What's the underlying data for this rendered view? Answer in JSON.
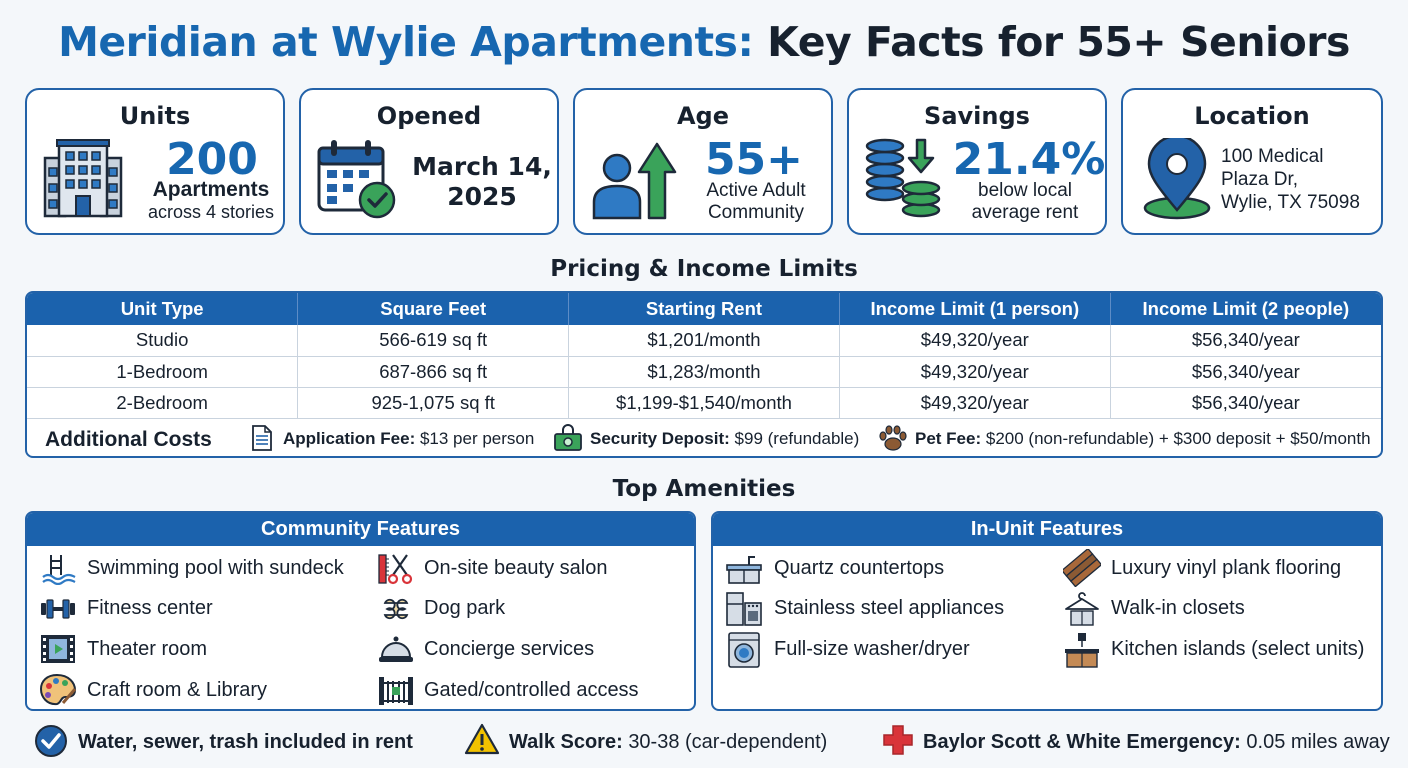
{
  "title": {
    "part1": "Meridian at Wylie Apartments:",
    "part2": "Key Facts for 55+ Seniors"
  },
  "cards": {
    "units": {
      "title": "Units",
      "value": "200",
      "line1": "Apartments",
      "line2": "across 4 stories",
      "icon": "apartment-building-icon"
    },
    "opened": {
      "title": "Opened",
      "line1": "March 14,",
      "line2": "2025",
      "icon": "calendar-check-icon"
    },
    "age": {
      "title": "Age",
      "value": "55+",
      "line1": "Active Adult",
      "line2": "Community",
      "icon": "person-growth-arrow-icon"
    },
    "savings": {
      "title": "Savings",
      "value": "21.4%",
      "line1": "below local",
      "line2": "average rent",
      "icon": "coin-stacks-icon"
    },
    "location": {
      "title": "Location",
      "line1": "100 Medical",
      "line2": "Plaza Dr,",
      "line3": "Wylie, TX 75098",
      "icon": "map-pin-icon"
    }
  },
  "pricing": {
    "title": "Pricing & Income Limits",
    "columns": [
      "Unit Type",
      "Square Feet",
      "Starting Rent",
      "Income Limit (1 person)",
      "Income Limit (2 people)"
    ],
    "rows": [
      [
        "Studio",
        "566-619 sq ft",
        "$1,201/month",
        "$49,320/year",
        "$56,340/year"
      ],
      [
        "1-Bedroom",
        "687-866 sq ft",
        "$1,283/month",
        "$49,320/year",
        "$56,340/year"
      ],
      [
        "2-Bedroom",
        "925-1,075 sq ft",
        "$1,199-$1,540/month",
        "$49,320/year",
        "$56,340/year"
      ]
    ],
    "additional": {
      "label": "Additional Costs",
      "application_label": "Application Fee:",
      "application_value": "$13 per person",
      "deposit_label": "Security Deposit:",
      "deposit_value": "$99 (refundable)",
      "pet_label": "Pet Fee:",
      "pet_value": "$200 (non-refundable) + $300 deposit + $50/month"
    }
  },
  "amenities": {
    "title": "Top Amenities",
    "community": {
      "header": "Community Features",
      "items": [
        "Swimming pool with sundeck",
        "Fitness center",
        "Theater room",
        "Craft room & Library",
        "On-site beauty salon",
        "Dog park",
        "Concierge services",
        "Gated/controlled access"
      ]
    },
    "inunit": {
      "header": "In-Unit Features",
      "items": [
        "Quartz countertops",
        "Stainless steel appliances",
        "Full-size washer/dryer",
        "Luxury vinyl plank flooring",
        "Walk-in closets",
        "Kitchen islands (select units)"
      ]
    }
  },
  "footer": {
    "utilities": "Water, sewer, trash included in rent",
    "walk_label": "Walk Score:",
    "walk_value": "30-38 (car-dependent)",
    "hospital_label": "Baylor Scott & White Emergency:",
    "hospital_value": "0.05 miles away"
  },
  "colors": {
    "accent": "#1767b0",
    "header_bg": "#1b62ad",
    "green": "#3aa35a",
    "red": "#d9343a",
    "warning": "#f2c200"
  }
}
